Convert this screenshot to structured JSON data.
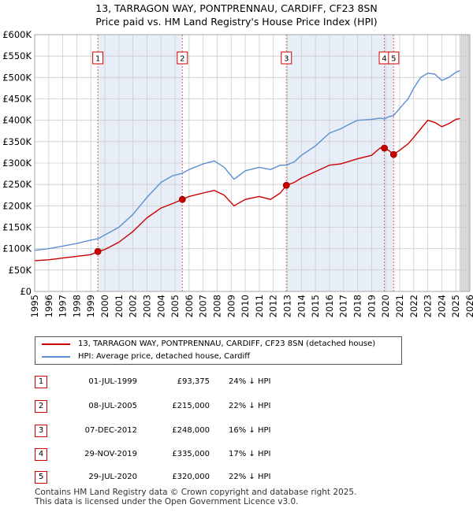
{
  "title_line1": "13, TARRAGON WAY, PONTPRENNAU, CARDIFF, CF23 8SN",
  "title_line2": "Price paid vs. HM Land Registry's House Price Index (HPI)",
  "colors": {
    "property": "#cc0000",
    "hpi": "#5b8fd4",
    "vline": "#e06060",
    "shade": "#e8eef8",
    "grid": "#cccccc"
  },
  "chart_data": {
    "type": "line",
    "title": "13, TARRAGON WAY, PONTPRENNAU, CARDIFF, CF23 8SN — Price paid vs. HM Land Registry's House Price Index (HPI)",
    "xlabel": "",
    "ylabel": "",
    "xlim": [
      1995,
      2026
    ],
    "ylim": [
      0,
      600000
    ],
    "y_ticks": [
      0,
      50000,
      100000,
      150000,
      200000,
      250000,
      300000,
      350000,
      400000,
      450000,
      500000,
      550000,
      600000
    ],
    "y_tick_labels": [
      "£0",
      "£50K",
      "£100K",
      "£150K",
      "£200K",
      "£250K",
      "£300K",
      "£350K",
      "£400K",
      "£450K",
      "£500K",
      "£550K",
      "£600K"
    ],
    "x_ticks": [
      1995,
      1996,
      1997,
      1998,
      1999,
      2000,
      2001,
      2002,
      2003,
      2004,
      2005,
      2006,
      2007,
      2008,
      2009,
      2010,
      2011,
      2012,
      2013,
      2014,
      2015,
      2016,
      2017,
      2018,
      2019,
      2020,
      2021,
      2022,
      2023,
      2024,
      2025,
      2026
    ],
    "grid": true,
    "shaded_spans": [
      [
        1999.5,
        2005.52
      ],
      [
        2012.93,
        2020.57
      ]
    ],
    "forecast_start": 2025.3,
    "series": [
      {
        "name": "13, TARRAGON WAY, PONTPRENNAU, CARDIFF, CF23 8SN (detached house)",
        "color": "#cc0000",
        "x": [
          1995,
          1996,
          1997,
          1998,
          1999,
          1999.5,
          2000,
          2001,
          2002,
          2003,
          2004,
          2004.8,
          2005.52,
          2006,
          2007,
          2007.8,
          2008.5,
          2009.2,
          2010,
          2011,
          2011.8,
          2012.5,
          2012.93,
          2013.5,
          2014,
          2015,
          2016,
          2016.8,
          2017.5,
          2018,
          2019,
          2019.6,
          2019.91,
          2020.2,
          2020.57,
          2021,
          2021.6,
          2022,
          2022.5,
          2023,
          2023.5,
          2024,
          2024.5,
          2025,
          2025.3
        ],
        "values": [
          72000,
          74000,
          78000,
          82000,
          86000,
          93375,
          98000,
          115000,
          140000,
          172000,
          195000,
          205000,
          215000,
          222000,
          230000,
          236000,
          225000,
          200000,
          215000,
          222000,
          215000,
          230000,
          248000,
          255000,
          265000,
          280000,
          295000,
          298000,
          305000,
          310000,
          318000,
          335000,
          335000,
          330000,
          320000,
          330000,
          345000,
          360000,
          380000,
          400000,
          395000,
          385000,
          392000,
          402000,
          404000
        ]
      },
      {
        "name": "HPI: Average price, detached house, Cardiff",
        "color": "#5b8fd4",
        "x": [
          1995,
          1996,
          1997,
          1998,
          1999,
          1999.5,
          2000,
          2001,
          2002,
          2003,
          2004,
          2004.8,
          2005.52,
          2006,
          2007,
          2007.8,
          2008.5,
          2009.2,
          2010,
          2011,
          2011.8,
          2012.5,
          2012.93,
          2013.5,
          2014,
          2015,
          2016,
          2016.8,
          2017.5,
          2018,
          2019,
          2019.6,
          2019.91,
          2020.2,
          2020.57,
          2021,
          2021.6,
          2022,
          2022.5,
          2023,
          2023.5,
          2024,
          2024.5,
          2025,
          2025.3
        ],
        "values": [
          96000,
          100000,
          106000,
          112000,
          120000,
          123000,
          132000,
          150000,
          180000,
          220000,
          255000,
          270000,
          276000,
          285000,
          298000,
          305000,
          290000,
          262000,
          282000,
          290000,
          285000,
          295000,
          295000,
          303000,
          318000,
          340000,
          370000,
          380000,
          392000,
          400000,
          402000,
          405000,
          403000,
          408000,
          411000,
          428000,
          450000,
          475000,
          500000,
          510000,
          508000,
          493000,
          500000,
          512000,
          516000
        ]
      }
    ],
    "sales": [
      {
        "label": "1",
        "x": 1999.5,
        "value": 93375
      },
      {
        "label": "2",
        "x": 2005.52,
        "value": 215000
      },
      {
        "label": "3",
        "x": 2012.93,
        "value": 248000
      },
      {
        "label": "4",
        "x": 2019.91,
        "value": 335000
      },
      {
        "label": "5",
        "x": 2020.57,
        "value": 320000
      }
    ]
  },
  "legend": {
    "property_label": "13, TARRAGON WAY, PONTPRENNAU, CARDIFF, CF23 8SN (detached house)",
    "hpi_label": "HPI: Average price, detached house, Cardiff"
  },
  "transactions": [
    {
      "num": "1",
      "date": "01-JUL-1999",
      "price": "£93,375",
      "hpi": "24% ↓ HPI"
    },
    {
      "num": "2",
      "date": "08-JUL-2005",
      "price": "£215,000",
      "hpi": "22% ↓ HPI"
    },
    {
      "num": "3",
      "date": "07-DEC-2012",
      "price": "£248,000",
      "hpi": "16% ↓ HPI"
    },
    {
      "num": "4",
      "date": "29-NOV-2019",
      "price": "£335,000",
      "hpi": "17% ↓ HPI"
    },
    {
      "num": "5",
      "date": "29-JUL-2020",
      "price": "£320,000",
      "hpi": "22% ↓ HPI"
    }
  ],
  "footer": {
    "line1": "Contains HM Land Registry data © Crown copyright and database right 2025.",
    "line2": "This data is licensed under the Open Government Licence v3.0."
  }
}
